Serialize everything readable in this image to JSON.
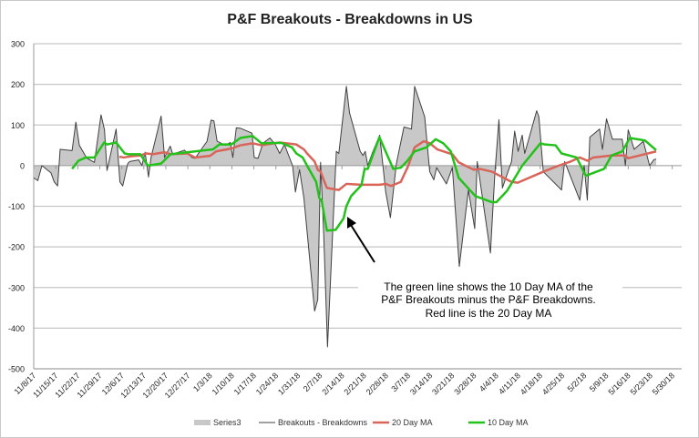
{
  "chart_data": {
    "type": "area",
    "title": "P&F Breakouts - Breakdowns in US",
    "xlabel": "",
    "ylabel": "",
    "x_unit": "days since 11/8/17",
    "xlim": [
      0,
      206
    ],
    "ylim": [
      -500,
      300
    ],
    "yticks": [
      300,
      200,
      100,
      0,
      -100,
      -200,
      -300,
      -400,
      -500
    ],
    "xtick_labels": [
      "11/8/17",
      "11/15/17",
      "11/22/17",
      "11/29/17",
      "12/6/17",
      "12/13/17",
      "12/20/17",
      "12/27/17",
      "1/3/18",
      "1/10/18",
      "1/17/18",
      "1/24/18",
      "1/31/18",
      "2/7/18",
      "2/14/18",
      "2/21/18",
      "2/28/18",
      "3/7/18",
      "3/14/18",
      "3/21/18",
      "3/28/18",
      "4/4/18",
      "4/11/18",
      "4/18/18",
      "4/25/18",
      "5/2/18",
      "5/9/18",
      "5/16/18",
      "5/23/18",
      "5/30/18"
    ],
    "grid": true,
    "legend_position": "bottom",
    "annotation": {
      "lines": [
        "The green line shows the 10 Day MA of the",
        "P&F Breakouts minus the P&F Breakdowns.",
        "Red line is the 20 Day MA"
      ],
      "arrow_target": [
        94,
        -100
      ]
    },
    "series": [
      {
        "name": "Series3",
        "kind": "area",
        "color": "#c8c8c8",
        "ref": 1
      },
      {
        "name": "Breakouts - Breakdowns",
        "kind": "line",
        "color": "#404040",
        "points": [
          [
            0,
            -30
          ],
          [
            1.3,
            -37
          ],
          [
            2.6,
            0
          ],
          [
            5.5,
            -18
          ],
          [
            6.5,
            -40
          ],
          [
            7.6,
            -50
          ],
          [
            8.4,
            40
          ],
          [
            12.2,
            37
          ],
          [
            13.4,
            107
          ],
          [
            14.5,
            50
          ],
          [
            16.9,
            18
          ],
          [
            19.3,
            8
          ],
          [
            21.4,
            125
          ],
          [
            22.5,
            88
          ],
          [
            23.3,
            -12
          ],
          [
            26.2,
            90
          ],
          [
            27.4,
            -40
          ],
          [
            28.3,
            -50
          ],
          [
            29.9,
            5
          ],
          [
            30.5,
            10
          ],
          [
            33.4,
            14
          ],
          [
            34.4,
            0
          ],
          [
            35.4,
            33
          ],
          [
            36.5,
            -28
          ],
          [
            37.3,
            20
          ],
          [
            40.5,
            122
          ],
          [
            41.6,
            20
          ],
          [
            43.4,
            48
          ],
          [
            44.2,
            28
          ],
          [
            47.9,
            38
          ],
          [
            50.3,
            20
          ],
          [
            51.3,
            18
          ],
          [
            55.1,
            60
          ],
          [
            56.4,
            112
          ],
          [
            57.3,
            110
          ],
          [
            58.3,
            60
          ],
          [
            60.9,
            50
          ],
          [
            62.5,
            57
          ],
          [
            63.3,
            20
          ],
          [
            64.4,
            93
          ],
          [
            65.7,
            92
          ],
          [
            69.4,
            80
          ],
          [
            70.1,
            20
          ],
          [
            71.3,
            18
          ],
          [
            72.9,
            55
          ],
          [
            75.1,
            68
          ],
          [
            76.8,
            52
          ],
          [
            78.2,
            30
          ],
          [
            79.7,
            52
          ],
          [
            82.3,
            0
          ],
          [
            83.2,
            -65
          ],
          [
            84.5,
            -10
          ],
          [
            85.9,
            -80
          ],
          [
            89.3,
            -358
          ],
          [
            90.3,
            -330
          ],
          [
            91.2,
            8
          ],
          [
            92.2,
            -170
          ],
          [
            93.4,
            -446
          ],
          [
            96.2,
            35
          ],
          [
            97.0,
            30
          ],
          [
            99.4,
            195
          ],
          [
            100.4,
            130
          ],
          [
            103.8,
            35
          ],
          [
            104.7,
            25
          ],
          [
            105.4,
            35
          ],
          [
            106.2,
            0
          ],
          [
            107.6,
            30
          ],
          [
            110.0,
            75
          ],
          [
            111.9,
            -65
          ],
          [
            113.4,
            -128
          ],
          [
            115.3,
            5
          ],
          [
            117.7,
            95
          ],
          [
            118.7,
            93
          ],
          [
            120.1,
            90
          ],
          [
            121.1,
            195
          ],
          [
            124.3,
            120
          ],
          [
            125.9,
            -15
          ],
          [
            127.2,
            -35
          ],
          [
            128.1,
            -5
          ],
          [
            131.2,
            -45
          ],
          [
            133.1,
            -5
          ],
          [
            135.3,
            -248
          ],
          [
            138.2,
            -60
          ],
          [
            140.2,
            -155
          ],
          [
            141.0,
            10
          ],
          [
            145.2,
            -215
          ],
          [
            146.6,
            -20
          ],
          [
            147.9,
            113
          ],
          [
            149.0,
            -55
          ],
          [
            151.9,
            10
          ],
          [
            152.9,
            85
          ],
          [
            154.0,
            35
          ],
          [
            155.3,
            75
          ],
          [
            156.1,
            30
          ],
          [
            159.9,
            135
          ],
          [
            160.6,
            120
          ],
          [
            162.0,
            -15
          ],
          [
            167.8,
            -60
          ],
          [
            168.8,
            10
          ],
          [
            173.6,
            -85
          ],
          [
            175.0,
            0
          ],
          [
            176.0,
            -85
          ],
          [
            176.8,
            70
          ],
          [
            179.9,
            90
          ],
          [
            180.8,
            40
          ],
          [
            182.1,
            115
          ],
          [
            184.0,
            65
          ],
          [
            187.1,
            65
          ],
          [
            188.1,
            0
          ],
          [
            189.0,
            88
          ],
          [
            190.9,
            40
          ],
          [
            193.8,
            60
          ],
          [
            195.8,
            0
          ],
          [
            197.2,
            15
          ],
          [
            197.9,
            16
          ]
        ]
      },
      {
        "name": "20 Day MA",
        "kind": "line",
        "color": "#d9655a",
        "points": [
          [
            27.2,
            22
          ],
          [
            28.6,
            20
          ],
          [
            31.0,
            23
          ],
          [
            33.9,
            25
          ],
          [
            35.8,
            30
          ],
          [
            37.8,
            28
          ],
          [
            41.6,
            33
          ],
          [
            43.5,
            28
          ],
          [
            48.8,
            30
          ],
          [
            51.3,
            20
          ],
          [
            56.1,
            24
          ],
          [
            58,
            35
          ],
          [
            62.8,
            42
          ],
          [
            65.7,
            50
          ],
          [
            69.6,
            55
          ],
          [
            72.4,
            50
          ],
          [
            78.2,
            57
          ],
          [
            83.5,
            52
          ],
          [
            85.9,
            40
          ],
          [
            86.9,
            30
          ],
          [
            89.3,
            10
          ],
          [
            90.3,
            -10
          ],
          [
            91.2,
            -15
          ],
          [
            93.2,
            -55
          ],
          [
            97,
            -60
          ],
          [
            99.4,
            -45
          ],
          [
            104.2,
            -47
          ],
          [
            109.9,
            -47
          ],
          [
            111.9,
            -45
          ],
          [
            113.6,
            -50
          ],
          [
            116.7,
            -40
          ],
          [
            119.1,
            0
          ],
          [
            121.1,
            45
          ],
          [
            124,
            60
          ],
          [
            125.9,
            55
          ],
          [
            128.3,
            40
          ],
          [
            133.1,
            28
          ],
          [
            135.1,
            8
          ],
          [
            139.9,
            -10
          ],
          [
            141.8,
            -8
          ],
          [
            145.7,
            -15
          ],
          [
            151.9,
            -40
          ],
          [
            153.9,
            -42
          ],
          [
            162,
            -15
          ],
          [
            166.9,
            0
          ],
          [
            170.7,
            10
          ],
          [
            173.6,
            20
          ],
          [
            176,
            12
          ],
          [
            177.9,
            20
          ],
          [
            183.7,
            25
          ],
          [
            188.1,
            25
          ],
          [
            189,
            18
          ],
          [
            197.9,
            35
          ]
        ]
      },
      {
        "name": "10 Day MA",
        "kind": "line",
        "color": "#22c21a",
        "points": [
          [
            12.2,
            -8
          ],
          [
            14.2,
            12
          ],
          [
            16.6,
            20
          ],
          [
            19.3,
            20
          ],
          [
            22.4,
            57
          ],
          [
            23.3,
            52
          ],
          [
            26.2,
            57
          ],
          [
            28.9,
            30
          ],
          [
            30.1,
            28
          ],
          [
            33.9,
            28
          ],
          [
            36.3,
            0
          ],
          [
            40.5,
            5
          ],
          [
            43.5,
            28
          ],
          [
            51.3,
            35
          ],
          [
            57,
            40
          ],
          [
            59,
            52
          ],
          [
            62.8,
            52
          ],
          [
            65.7,
            68
          ],
          [
            69.6,
            73
          ],
          [
            72.4,
            55
          ],
          [
            78.7,
            56
          ],
          [
            82.1,
            45
          ],
          [
            83.5,
            30
          ],
          [
            85.5,
            20
          ],
          [
            86.9,
            0
          ],
          [
            89.8,
            -40
          ],
          [
            90.8,
            -80
          ],
          [
            91.5,
            -85
          ],
          [
            93.2,
            -160
          ],
          [
            96,
            -158
          ],
          [
            98.5,
            -130
          ],
          [
            99.4,
            -100
          ],
          [
            100.9,
            -75
          ],
          [
            104.2,
            -48
          ],
          [
            105.2,
            -8
          ],
          [
            106.2,
            -8
          ],
          [
            109.9,
            70
          ],
          [
            114.3,
            -8
          ],
          [
            116.7,
            -5
          ],
          [
            118.6,
            10
          ],
          [
            121.1,
            35
          ],
          [
            124.9,
            45
          ],
          [
            127.8,
            65
          ],
          [
            130.2,
            55
          ],
          [
            132.6,
            35
          ],
          [
            135.1,
            -30
          ],
          [
            140.4,
            -75
          ],
          [
            145.7,
            -90
          ],
          [
            147.1,
            -90
          ],
          [
            150.5,
            -62
          ],
          [
            155.3,
            0
          ],
          [
            161.1,
            55
          ],
          [
            162.5,
            52
          ],
          [
            165.9,
            50
          ],
          [
            167.8,
            30
          ],
          [
            172.6,
            20
          ],
          [
            175.5,
            -25
          ],
          [
            181.3,
            -8
          ],
          [
            183.7,
            25
          ],
          [
            187.1,
            35
          ],
          [
            189.5,
            68
          ],
          [
            194.3,
            62
          ],
          [
            197.9,
            38
          ]
        ]
      }
    ]
  }
}
